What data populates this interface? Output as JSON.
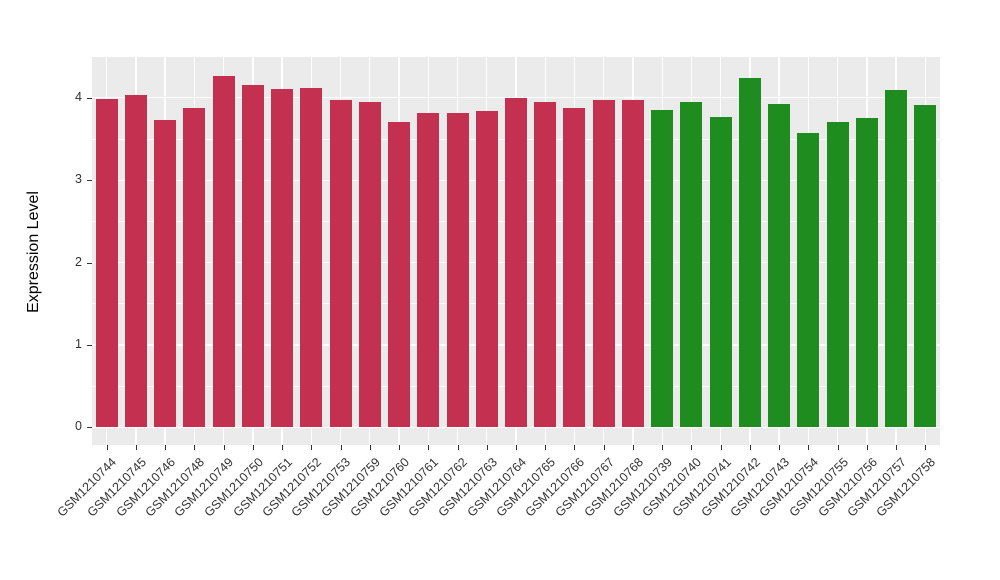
{
  "chart_data": {
    "type": "bar",
    "title": "",
    "xlabel": "",
    "ylabel": "Expression Level",
    "ylim": [
      0,
      4.5
    ],
    "yticks": [
      0,
      1,
      2,
      3,
      4
    ],
    "legend": "none",
    "grid": "white major and minor horizontal gridlines plus vertical category gridlines on gray panel",
    "panel_bg": "#EBEBEB",
    "group_colors": {
      "group1": "#C43150",
      "group2": "#1E8C1E"
    },
    "bars": [
      {
        "label": "GSM1210744",
        "value": 3.98,
        "group": "group1"
      },
      {
        "label": "GSM1210745",
        "value": 4.04,
        "group": "group1"
      },
      {
        "label": "GSM1210746",
        "value": 3.73,
        "group": "group1"
      },
      {
        "label": "GSM1210748",
        "value": 3.88,
        "group": "group1"
      },
      {
        "label": "GSM1210749",
        "value": 4.27,
        "group": "group1"
      },
      {
        "label": "GSM1210750",
        "value": 4.16,
        "group": "group1"
      },
      {
        "label": "GSM1210751",
        "value": 4.11,
        "group": "group1"
      },
      {
        "label": "GSM1210752",
        "value": 4.12,
        "group": "group1"
      },
      {
        "label": "GSM1210753",
        "value": 3.97,
        "group": "group1"
      },
      {
        "label": "GSM1210759",
        "value": 3.95,
        "group": "group1"
      },
      {
        "label": "GSM1210760",
        "value": 3.71,
        "group": "group1"
      },
      {
        "label": "GSM1210761",
        "value": 3.81,
        "group": "group1"
      },
      {
        "label": "GSM1210762",
        "value": 3.82,
        "group": "group1"
      },
      {
        "label": "GSM1210763",
        "value": 3.84,
        "group": "group1"
      },
      {
        "label": "GSM1210764",
        "value": 4.0,
        "group": "group1"
      },
      {
        "label": "GSM1210765",
        "value": 3.95,
        "group": "group1"
      },
      {
        "label": "GSM1210766",
        "value": 3.88,
        "group": "group1"
      },
      {
        "label": "GSM1210767",
        "value": 3.97,
        "group": "group1"
      },
      {
        "label": "GSM1210768",
        "value": 3.97,
        "group": "group1"
      },
      {
        "label": "GSM1210739",
        "value": 3.85,
        "group": "group2"
      },
      {
        "label": "GSM1210740",
        "value": 3.95,
        "group": "group2"
      },
      {
        "label": "GSM1210741",
        "value": 3.77,
        "group": "group2"
      },
      {
        "label": "GSM1210742",
        "value": 4.24,
        "group": "group2"
      },
      {
        "label": "GSM1210743",
        "value": 3.92,
        "group": "group2"
      },
      {
        "label": "GSM1210754",
        "value": 3.57,
        "group": "group2"
      },
      {
        "label": "GSM1210755",
        "value": 3.71,
        "group": "group2"
      },
      {
        "label": "GSM1210756",
        "value": 3.75,
        "group": "group2"
      },
      {
        "label": "GSM1210757",
        "value": 4.1,
        "group": "group2"
      },
      {
        "label": "GSM1210758",
        "value": 3.91,
        "group": "group2"
      }
    ]
  }
}
